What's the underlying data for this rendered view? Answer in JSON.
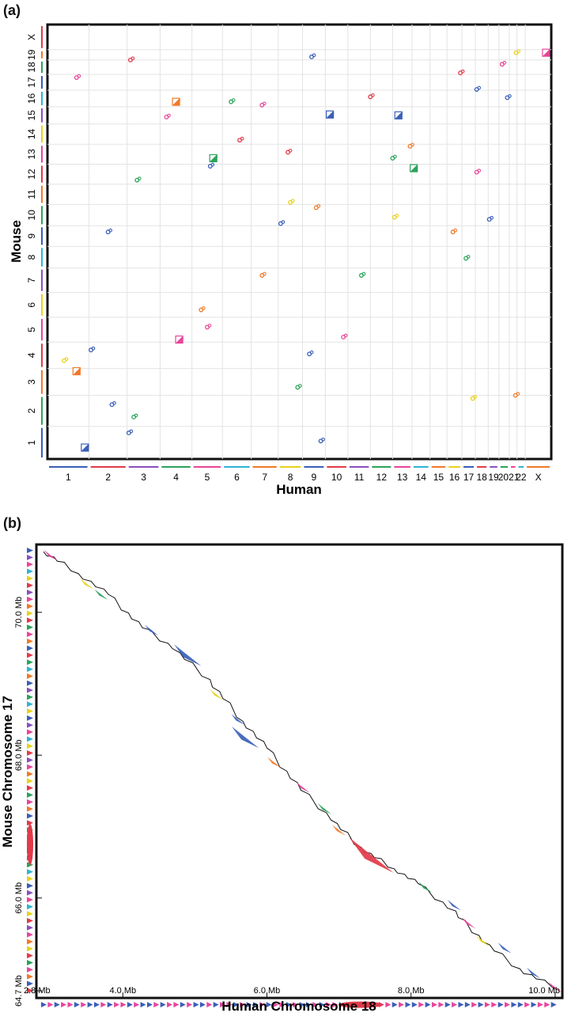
{
  "panel_a": {
    "label": "(a)",
    "ylabel": "Mouse",
    "xlabel": "Human",
    "mouse_chromosomes": [
      "1",
      "2",
      "3",
      "4",
      "5",
      "6",
      "7",
      "8",
      "9",
      "10",
      "11",
      "12",
      "13",
      "14",
      "15",
      "16",
      "17",
      "18",
      "19",
      "X"
    ],
    "human_chromosomes": [
      "1",
      "2",
      "3",
      "4",
      "5",
      "6",
      "7",
      "8",
      "9",
      "10",
      "11",
      "12",
      "13",
      "14",
      "15",
      "16",
      "17",
      "18",
      "19",
      "20",
      "21",
      "22",
      "X"
    ],
    "human_tick_labels": [
      "1",
      "2",
      "3",
      "4",
      "5",
      "6",
      "7",
      "8",
      "9",
      "10",
      "11",
      "12",
      "13",
      "14",
      "15",
      "16",
      "17",
      "18",
      "19",
      "2021",
      "22",
      "X"
    ]
  },
  "panel_b": {
    "label": "(b)",
    "ylabel": "Mouse Chromosome 17",
    "xlabel": "Human Chromosome 18",
    "x_ticks": [
      "2.8 Mb",
      "4.0 Mb",
      "6.0 Mb",
      "8.0 Mb",
      "10.0 Mb"
    ],
    "y_ticks": [
      "64.7 Mb",
      "66.0 Mb",
      "68.0 Mb",
      "70.0 Mb"
    ]
  },
  "colors": {
    "blue": "#3a5fb8",
    "green": "#2ba35a",
    "orange": "#f07a28",
    "red": "#e23a4a",
    "pink": "#e8459a",
    "yellow": "#e8d21c",
    "purple": "#8a4fc0",
    "cyan": "#2fb4d6",
    "black": "#111111"
  },
  "chart_data": [
    {
      "type": "scatter",
      "title": "",
      "xlabel": "Human",
      "ylabel": "Mouse",
      "x_categories": [
        "1",
        "2",
        "3",
        "4",
        "5",
        "6",
        "7",
        "8",
        "9",
        "10",
        "11",
        "12",
        "13",
        "14",
        "15",
        "16",
        "17",
        "18",
        "19",
        "20",
        "21",
        "22",
        "X"
      ],
      "y_categories": [
        "1",
        "2",
        "3",
        "4",
        "5",
        "6",
        "7",
        "8",
        "9",
        "10",
        "11",
        "12",
        "13",
        "14",
        "15",
        "16",
        "17",
        "18",
        "19",
        "X"
      ],
      "grid": true,
      "note_units": "x in human chromosome index units (0 = start of chr1), y in mouse chromosome index units (0 = start of chr1)",
      "series": [
        {
          "color": "blue",
          "points": [
            [
              0.9,
              0.35
            ],
            [
              1.05,
              3.7
            ],
            [
              8.3,
              3.55
            ],
            [
              9.2,
              14.55
            ],
            [
              12.3,
              14.5
            ],
            [
              3.6,
              4.1
            ],
            [
              8.4,
              18.3
            ],
            [
              1.6,
              1.7
            ],
            [
              1.5,
              8.7
            ],
            [
              4.6,
              11.9
            ],
            [
              7.1,
              9.1
            ],
            [
              8.8,
              0.55
            ],
            [
              17.1,
              16.05
            ],
            [
              19.8,
              15.55
            ],
            [
              18.1,
              9.3
            ],
            [
              2.05,
              0.8
            ]
          ]
        },
        {
          "color": "green",
          "points": [
            [
              2.2,
              1.3
            ],
            [
              4.7,
              12.3
            ],
            [
              12.0,
              12.3
            ],
            [
              16.3,
              7.45
            ],
            [
              5.3,
              15.3
            ],
            [
              2.3,
              11.2
            ],
            [
              10.6,
              6.7
            ],
            [
              7.8,
              2.3
            ]
          ]
        },
        {
          "color": "orange",
          "points": [
            [
              0.7,
              2.9
            ],
            [
              3.5,
              15.3
            ],
            [
              12.9,
              12.9
            ],
            [
              8.6,
              9.85
            ],
            [
              15.4,
              8.7
            ],
            [
              6.4,
              6.7
            ],
            [
              20.8,
              2.0
            ],
            [
              4.3,
              5.3
            ]
          ]
        },
        {
          "color": "pink",
          "points": [
            [
              4.5,
              4.6
            ],
            [
              3.2,
              14.4
            ],
            [
              6.4,
              15.1
            ],
            [
              17.1,
              11.6
            ],
            [
              0.7,
              16.8
            ],
            [
              19.3,
              17.7
            ],
            [
              9.8,
              4.2
            ]
          ]
        },
        {
          "color": "red",
          "points": [
            [
              2.1,
              18.0
            ],
            [
              7.4,
              12.6
            ],
            [
              11.0,
              15.6
            ],
            [
              15.9,
              17.1
            ],
            [
              5.6,
              13.2
            ]
          ]
        },
        {
          "color": "yellow",
          "points": [
            [
              0.4,
              3.3
            ],
            [
              12.1,
              9.4
            ],
            [
              16.8,
              1.9
            ],
            [
              20.9,
              18.7
            ],
            [
              7.5,
              10.1
            ]
          ]
        }
      ]
    },
    {
      "type": "scatter",
      "title": "",
      "xlabel": "Human Chromosome 18",
      "ylabel": "Mouse Chromosome 17",
      "x_ticks": [
        2.8,
        4.0,
        6.0,
        8.0,
        10.0
      ],
      "y_ticks": [
        64.7,
        66.0,
        68.0,
        70.0
      ],
      "xlim": [
        2.8,
        10.1
      ],
      "ylim": [
        64.6,
        70.95
      ],
      "units": "Mb",
      "diagonal_points": [
        [
          2.9,
          70.85
        ],
        [
          3.3,
          70.6
        ],
        [
          3.8,
          70.25
        ],
        [
          4.2,
          69.85
        ],
        [
          4.7,
          69.5
        ],
        [
          5.2,
          69.05
        ],
        [
          5.6,
          68.55
        ],
        [
          6.0,
          68.1
        ],
        [
          6.4,
          67.6
        ],
        [
          6.9,
          67.1
        ],
        [
          7.3,
          66.7
        ],
        [
          7.7,
          66.45
        ],
        [
          8.1,
          66.2
        ],
        [
          8.6,
          65.8
        ],
        [
          9.0,
          65.4
        ],
        [
          9.5,
          65.0
        ],
        [
          10.0,
          64.75
        ]
      ],
      "feature_arrows": [
        {
          "x": 3.0,
          "y": 70.8,
          "color": "pink"
        },
        {
          "x": 3.5,
          "y": 70.4,
          "color": "yellow"
        },
        {
          "x": 3.7,
          "y": 70.25,
          "color": "green"
        },
        {
          "x": 4.4,
          "y": 69.75,
          "color": "blue"
        },
        {
          "x": 4.9,
          "y": 69.4,
          "color": "blue"
        },
        {
          "x": 5.3,
          "y": 68.85,
          "color": "yellow"
        },
        {
          "x": 5.6,
          "y": 68.5,
          "color": "blue"
        },
        {
          "x": 5.7,
          "y": 68.25,
          "color": "blue"
        },
        {
          "x": 6.1,
          "y": 67.9,
          "color": "orange"
        },
        {
          "x": 6.5,
          "y": 67.55,
          "color": "pink"
        },
        {
          "x": 6.8,
          "y": 67.25,
          "color": "green"
        },
        {
          "x": 7.0,
          "y": 66.95,
          "color": "orange"
        },
        {
          "x": 7.45,
          "y": 66.6,
          "color": "red"
        },
        {
          "x": 8.2,
          "y": 66.15,
          "color": "green"
        },
        {
          "x": 8.6,
          "y": 65.9,
          "color": "blue"
        },
        {
          "x": 8.8,
          "y": 65.65,
          "color": "pink"
        },
        {
          "x": 9.0,
          "y": 65.4,
          "color": "yellow"
        },
        {
          "x": 9.3,
          "y": 65.3,
          "color": "blue"
        },
        {
          "x": 9.7,
          "y": 64.95,
          "color": "blue"
        },
        {
          "x": 10.0,
          "y": 64.75,
          "color": "pink"
        }
      ]
    }
  ]
}
